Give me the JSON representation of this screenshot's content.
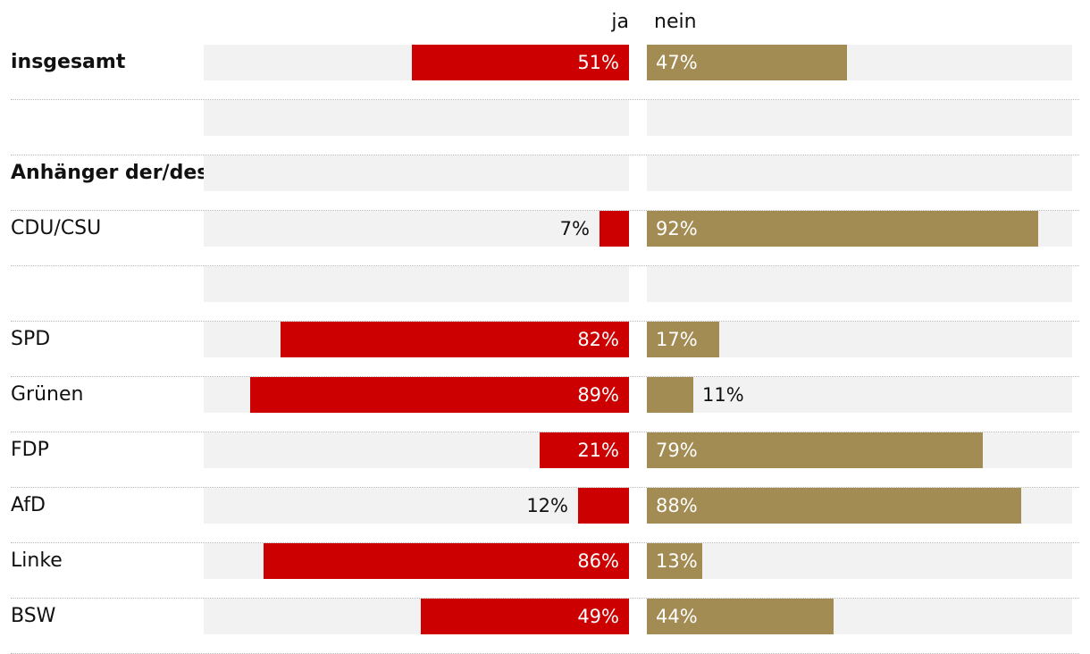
{
  "chart_data": {
    "type": "bar",
    "orientation": "horizontal-diverging",
    "title": "",
    "series": [
      {
        "name": "ja",
        "color": "#cc0000"
      },
      {
        "name": "nein",
        "color": "#a38b54"
      }
    ],
    "xlim": [
      0,
      100
    ],
    "unit": "%",
    "rows": [
      {
        "label": "insgesamt",
        "bold": true,
        "ja": 51,
        "nein": 47
      },
      {
        "label": "",
        "bold": false,
        "ja": null,
        "nein": null
      },
      {
        "label": "Anhänger der/des",
        "bold": true,
        "ja": null,
        "nein": null,
        "noTrack": false
      },
      {
        "label": "CDU/CSU",
        "bold": false,
        "ja": 7,
        "nein": 92
      },
      {
        "label": "",
        "bold": false,
        "ja": null,
        "nein": null
      },
      {
        "label": "SPD",
        "bold": false,
        "ja": 82,
        "nein": 17
      },
      {
        "label": "Grünen",
        "bold": false,
        "ja": 89,
        "nein": 11
      },
      {
        "label": "FDP",
        "bold": false,
        "ja": 21,
        "nein": 79
      },
      {
        "label": "AfD",
        "bold": false,
        "ja": 12,
        "nein": 88
      },
      {
        "label": "Linke",
        "bold": false,
        "ja": 86,
        "nein": 13
      },
      {
        "label": "BSW",
        "bold": false,
        "ja": 49,
        "nein": 44
      }
    ]
  }
}
